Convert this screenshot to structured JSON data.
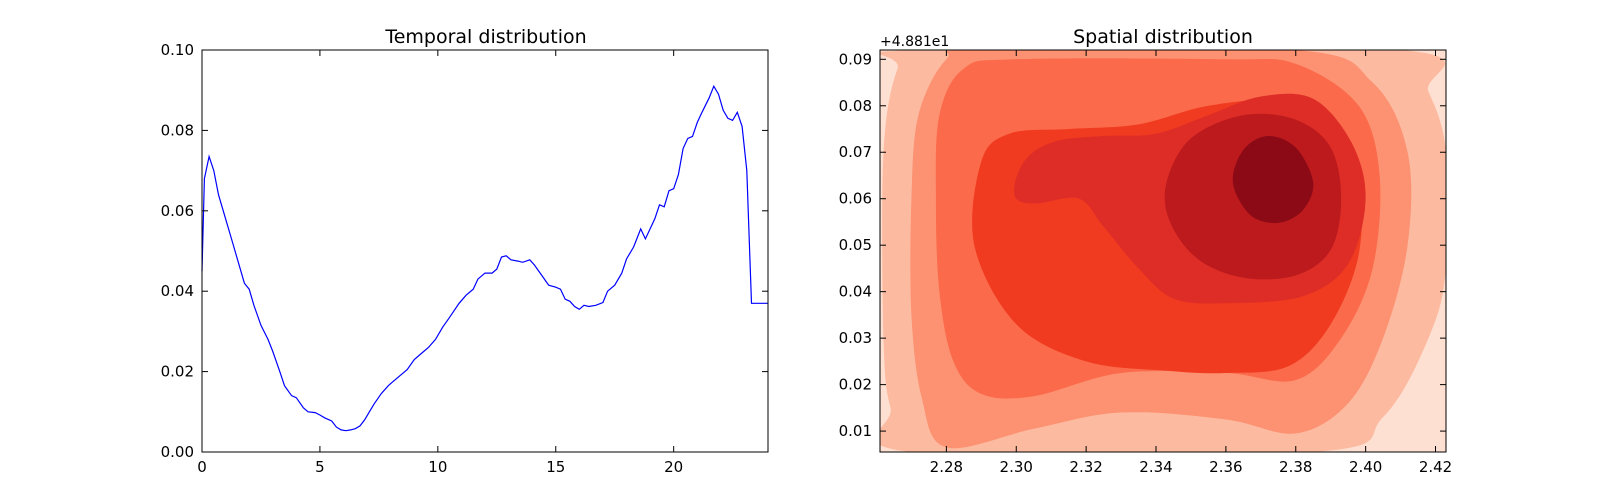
{
  "chart_data": [
    {
      "type": "line",
      "title": "Temporal distribution",
      "xlabel": "",
      "ylabel": "",
      "xlim": [
        0,
        24
      ],
      "ylim": [
        0,
        0.1
      ],
      "x_ticks": [
        0,
        5,
        10,
        15,
        20
      ],
      "x_tick_labels": [
        "0",
        "5",
        "10",
        "15",
        "20"
      ],
      "y_ticks": [
        0,
        0.02,
        0.04,
        0.06,
        0.08,
        0.1
      ],
      "y_tick_labels": [
        "0.00",
        "0.02",
        "0.04",
        "0.06",
        "0.08",
        "0.10"
      ],
      "grid": false,
      "line_color": "#0000ff",
      "series": [
        {
          "x": [
            0,
            0.1,
            0.3,
            0.5,
            0.7,
            1.0,
            1.3,
            1.6,
            1.8,
            2.0,
            2.2,
            2.5,
            2.8,
            3.0,
            3.3,
            3.5,
            3.8,
            4.0,
            4.3,
            4.5,
            4.8,
            5.0,
            5.2,
            5.5,
            5.7,
            5.9,
            6.1,
            6.3,
            6.5,
            6.7,
            6.9,
            7.1,
            7.3,
            7.6,
            7.9,
            8.1,
            8.4,
            8.7,
            9.0,
            9.3,
            9.6,
            9.9,
            10.2,
            10.5,
            10.9,
            11.2,
            11.5,
            11.7,
            12.0,
            12.3,
            12.5,
            12.7,
            12.9,
            13.1,
            13.4,
            13.6,
            13.9,
            14.1,
            14.4,
            14.7,
            15.0,
            15.2,
            15.4,
            15.6,
            15.8,
            16.0,
            16.2,
            16.4,
            16.7,
            17.0,
            17.2,
            17.5,
            17.8,
            18.0,
            18.3,
            18.6,
            18.8,
            19.0,
            19.2,
            19.4,
            19.6,
            19.8,
            20.0,
            20.2,
            20.4,
            20.6,
            20.8,
            21.0,
            21.2,
            21.5,
            21.7,
            21.9,
            22.1,
            22.3,
            22.5,
            22.7,
            22.9,
            23.1,
            23.3,
            23.5,
            23.7,
            23.9,
            24.0
          ],
          "y": [
            0.045,
            0.068,
            0.0735,
            0.07,
            0.064,
            0.058,
            0.052,
            0.046,
            0.042,
            0.0405,
            0.0365,
            0.0315,
            0.028,
            0.025,
            0.02,
            0.0165,
            0.014,
            0.0135,
            0.011,
            0.01,
            0.0098,
            0.0092,
            0.0085,
            0.0077,
            0.0062,
            0.0055,
            0.0053,
            0.0055,
            0.0058,
            0.0065,
            0.008,
            0.01,
            0.012,
            0.0145,
            0.0165,
            0.0175,
            0.019,
            0.0205,
            0.023,
            0.0245,
            0.026,
            0.028,
            0.031,
            0.0335,
            0.037,
            0.039,
            0.0405,
            0.043,
            0.0445,
            0.0445,
            0.0455,
            0.0485,
            0.0488,
            0.0478,
            0.0475,
            0.0472,
            0.0478,
            0.0465,
            0.044,
            0.0415,
            0.041,
            0.0405,
            0.038,
            0.0375,
            0.0362,
            0.0355,
            0.0365,
            0.0362,
            0.0365,
            0.0372,
            0.04,
            0.0415,
            0.0445,
            0.048,
            0.051,
            0.0555,
            0.053,
            0.0555,
            0.058,
            0.0615,
            0.061,
            0.065,
            0.0655,
            0.069,
            0.0755,
            0.078,
            0.0785,
            0.082,
            0.0845,
            0.088,
            0.091,
            0.089,
            0.085,
            0.083,
            0.0825,
            0.0845,
            0.081,
            0.07,
            0.037,
            0.037,
            0.037,
            0.037,
            0.037
          ]
        }
      ]
    },
    {
      "type": "heatmap",
      "title": "Spatial distribution",
      "xlabel": "",
      "ylabel": "",
      "xlim": [
        2.261,
        2.423
      ],
      "ylim": [
        0.0055,
        0.092
      ],
      "y_offset_label": "+4.881e1",
      "x_ticks": [
        2.28,
        2.3,
        2.32,
        2.34,
        2.36,
        2.38,
        2.4,
        2.42
      ],
      "x_tick_labels": [
        "2.28",
        "2.30",
        "2.32",
        "2.34",
        "2.36",
        "2.38",
        "2.40",
        "2.42"
      ],
      "y_ticks": [
        0.01,
        0.02,
        0.03,
        0.04,
        0.05,
        0.06,
        0.07,
        0.08,
        0.09
      ],
      "y_tick_labels": [
        "0.01",
        "0.02",
        "0.03",
        "0.04",
        "0.05",
        "0.06",
        "0.07",
        "0.08",
        "0.09"
      ],
      "grid": false,
      "colormap": "Reds",
      "level_colors": [
        "#fee0d2",
        "#fcbba1",
        "#fc9272",
        "#fb6a4a",
        "#f03b20",
        "#de2d26",
        "#bd1a1e",
        "#8c0a16"
      ],
      "contours": [
        {
          "level": 0,
          "points": [
            [
              2.261,
              0.0055
            ],
            [
              2.423,
              0.0055
            ],
            [
              2.423,
              0.092
            ],
            [
              2.261,
              0.092
            ]
          ]
        },
        {
          "level": 1,
          "points": [
            [
              2.27,
              0.0055
            ],
            [
              2.385,
              0.0055
            ],
            [
              2.405,
              0.013
            ],
            [
              2.418,
              0.03
            ],
            [
              2.423,
              0.045
            ],
            [
              2.423,
              0.07
            ],
            [
              2.418,
              0.083
            ],
            [
              2.41,
              0.092
            ],
            [
              2.272,
              0.092
            ],
            [
              2.266,
              0.088
            ],
            [
              2.262,
              0.07
            ],
            [
              2.262,
              0.03
            ],
            [
              2.264,
              0.015
            ]
          ]
        },
        {
          "level": 2,
          "points": [
            [
              2.28,
              0.0065
            ],
            [
              2.305,
              0.0105
            ],
            [
              2.33,
              0.014
            ],
            [
              2.36,
              0.0125
            ],
            [
              2.38,
              0.0095
            ],
            [
              2.395,
              0.016
            ],
            [
              2.405,
              0.03
            ],
            [
              2.412,
              0.05
            ],
            [
              2.412,
              0.07
            ],
            [
              2.402,
              0.085
            ],
            [
              2.38,
              0.092
            ],
            [
              2.29,
              0.092
            ],
            [
              2.28,
              0.09
            ],
            [
              2.272,
              0.078
            ],
            [
              2.27,
              0.06
            ],
            [
              2.27,
              0.035
            ],
            [
              2.273,
              0.017
            ]
          ]
        },
        {
          "level": 3,
          "points": [
            [
              2.29,
              0.018
            ],
            [
              2.305,
              0.0175
            ],
            [
              2.33,
              0.0225
            ],
            [
              2.36,
              0.0225
            ],
            [
              2.38,
              0.021
            ],
            [
              2.393,
              0.03
            ],
            [
              2.402,
              0.045
            ],
            [
              2.404,
              0.065
            ],
            [
              2.398,
              0.08
            ],
            [
              2.38,
              0.089
            ],
            [
              2.36,
              0.09
            ],
            [
              2.3,
              0.09
            ],
            [
              2.285,
              0.088
            ],
            [
              2.278,
              0.078
            ],
            [
              2.277,
              0.06
            ],
            [
              2.278,
              0.04
            ],
            [
              2.282,
              0.025
            ]
          ]
        },
        {
          "level": 4,
          "points": [
            [
              2.3,
              0.033
            ],
            [
              2.32,
              0.025
            ],
            [
              2.343,
              0.023
            ],
            [
              2.36,
              0.0225
            ],
            [
              2.378,
              0.024
            ],
            [
              2.39,
              0.033
            ],
            [
              2.398,
              0.048
            ],
            [
              2.398,
              0.065
            ],
            [
              2.39,
              0.076
            ],
            [
              2.375,
              0.081
            ],
            [
              2.355,
              0.08
            ],
            [
              2.335,
              0.076
            ],
            [
              2.315,
              0.075
            ],
            [
              2.298,
              0.074
            ],
            [
              2.29,
              0.068
            ],
            [
              2.288,
              0.05
            ]
          ]
        },
        {
          "level": 5,
          "points": [
            [
              2.3,
              0.0645
            ],
            [
              2.304,
              0.0695
            ],
            [
              2.312,
              0.0725
            ],
            [
              2.325,
              0.0735
            ],
            [
              2.34,
              0.074
            ],
            [
              2.355,
              0.078
            ],
            [
              2.37,
              0.082
            ],
            [
              2.385,
              0.0815
            ],
            [
              2.396,
              0.072
            ],
            [
              2.4,
              0.06
            ],
            [
              2.395,
              0.046
            ],
            [
              2.382,
              0.039
            ],
            [
              2.36,
              0.0375
            ],
            [
              2.345,
              0.0385
            ],
            [
              2.335,
              0.045
            ],
            [
              2.325,
              0.054
            ],
            [
              2.318,
              0.06
            ],
            [
              2.306,
              0.059
            ],
            [
              2.3,
              0.06
            ]
          ]
        },
        {
          "level": 6,
          "points": [
            [
              2.343,
              0.0635
            ],
            [
              2.35,
              0.073
            ],
            [
              2.365,
              0.078
            ],
            [
              2.38,
              0.077
            ],
            [
              2.39,
              0.071
            ],
            [
              2.393,
              0.06
            ],
            [
              2.39,
              0.049
            ],
            [
              2.38,
              0.0435
            ],
            [
              2.365,
              0.043
            ],
            [
              2.352,
              0.047
            ],
            [
              2.344,
              0.055
            ]
          ]
        },
        {
          "level": 7,
          "points": [
            [
              2.362,
              0.0635
            ],
            [
              2.365,
              0.0705
            ],
            [
              2.372,
              0.0735
            ],
            [
              2.38,
              0.071
            ],
            [
              2.385,
              0.0635
            ],
            [
              2.382,
              0.0575
            ],
            [
              2.375,
              0.0548
            ],
            [
              2.367,
              0.0565
            ]
          ]
        }
      ]
    }
  ]
}
